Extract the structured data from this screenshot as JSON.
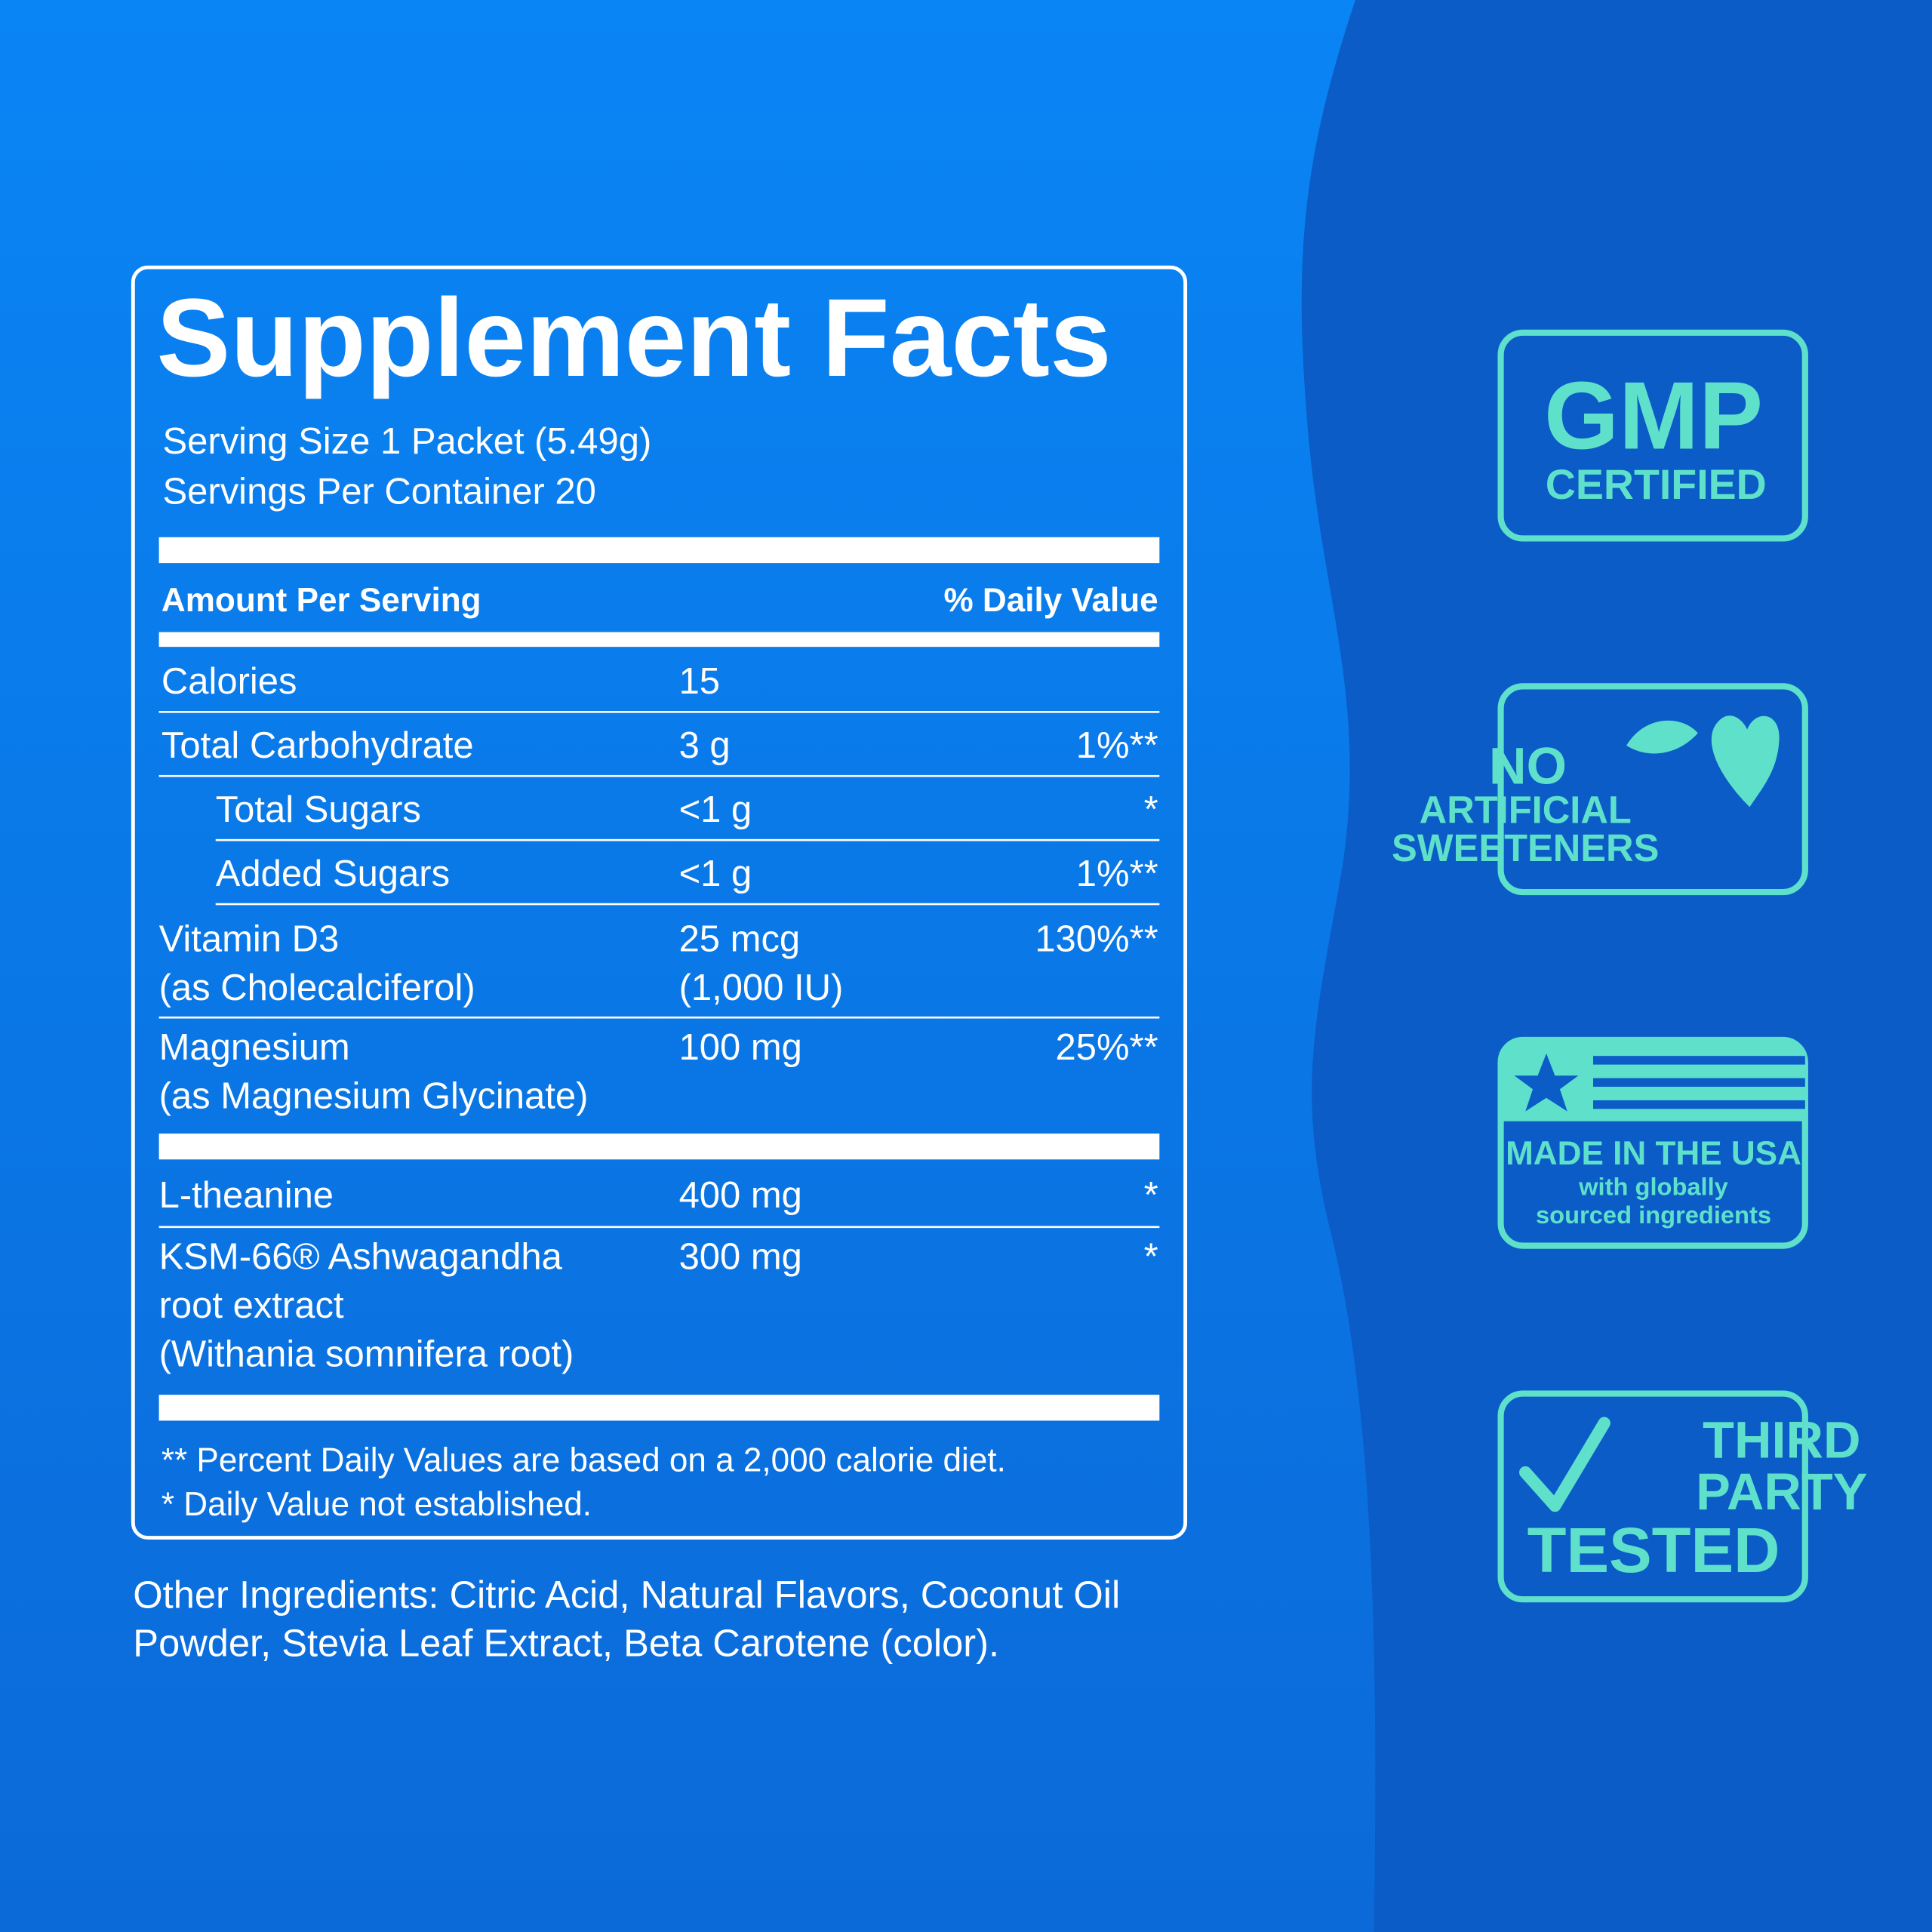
{
  "label": {
    "title": "Supplement Facts",
    "serving_size": "Serving Size 1 Packet (5.49g)",
    "servings_per_container": "Servings Per Container 20",
    "amount_header": "Amount Per Serving",
    "dv_header": "% Daily Value",
    "rows": [
      {
        "name": [
          "Calories"
        ],
        "amount": [
          "15"
        ],
        "dv": ""
      },
      {
        "name": [
          "Total Carbohydrate"
        ],
        "amount": [
          "3 g"
        ],
        "dv": "1%**"
      },
      {
        "name": [
          "Total Sugars"
        ],
        "amount": [
          "<1 g"
        ],
        "dv": "*"
      },
      {
        "name": [
          "Added Sugars"
        ],
        "amount": [
          "<1 g"
        ],
        "dv": "1%**"
      },
      {
        "name": [
          "Vitamin D3",
          "(as Cholecalciferol)"
        ],
        "amount": [
          "25 mcg",
          "(1,000 IU)"
        ],
        "dv": "130%**"
      },
      {
        "name": [
          "Magnesium",
          "(as Magnesium Glycinate)"
        ],
        "amount": [
          "100 mg"
        ],
        "dv": "25%**"
      },
      {
        "name": [
          "L-theanine"
        ],
        "amount": [
          "400 mg"
        ],
        "dv": "*"
      },
      {
        "name": [
          "KSM-66® Ashwagandha",
          "root extract",
          "(Withania somnifera root)"
        ],
        "amount": [
          "300 mg"
        ],
        "dv": "*"
      }
    ],
    "footnotes": [
      "** Percent Daily Values are based on a 2,000 calorie diet.",
      "* Daily Value not established."
    ]
  },
  "other_ingredients": [
    "Other Ingredients: Citric Acid, Natural Flavors, Coconut Oil",
    "Powder, Stevia Leaf Extract, Beta Carotene (color)."
  ],
  "badges": [
    [
      "GMP",
      "CERTIFIED"
    ],
    [
      "NO",
      "ARTIFICIAL",
      "SWEETENERS"
    ],
    [
      "MADE IN THE USA",
      "with globally",
      "sourced ingredients"
    ],
    [
      "THIRD",
      "PARTY",
      "TESTED"
    ]
  ]
}
